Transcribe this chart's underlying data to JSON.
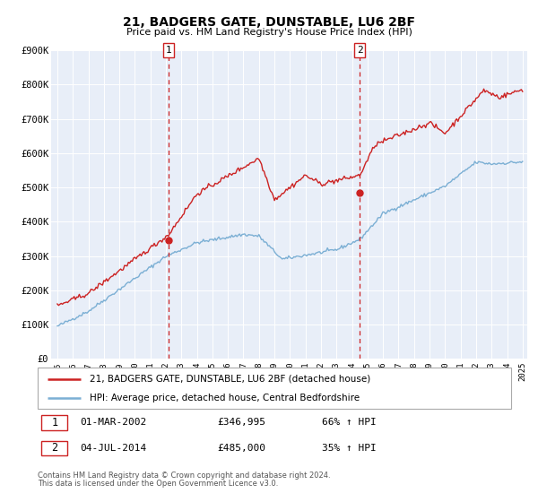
{
  "title": "21, BADGERS GATE, DUNSTABLE, LU6 2BF",
  "subtitle": "Price paid vs. HM Land Registry's House Price Index (HPI)",
  "hpi_label": "HPI: Average price, detached house, Central Bedfordshire",
  "price_label": "21, BADGERS GATE, DUNSTABLE, LU6 2BF (detached house)",
  "legend_text_1": "01-MAR-2002",
  "legend_price_1": "£346,995",
  "legend_pct_1": "66% ↑ HPI",
  "legend_text_2": "04-JUL-2014",
  "legend_price_2": "£485,000",
  "legend_pct_2": "35% ↑ HPI",
  "footer_1": "Contains HM Land Registry data © Crown copyright and database right 2024.",
  "footer_2": "This data is licensed under the Open Government Licence v3.0.",
  "vline1_year": 2002.17,
  "vline2_year": 2014.5,
  "sale1_year": 2002.17,
  "sale1_price": 346995,
  "sale2_year": 2014.5,
  "sale2_price": 485000,
  "hpi_color": "#7bafd4",
  "price_color": "#cc2222",
  "dot_color": "#cc2222",
  "background_color": "#e8eef8",
  "grid_color": "#ffffff",
  "ylim": [
    0,
    900000
  ],
  "xlim_start": 1994.6,
  "xlim_end": 2025.3,
  "yticks": [
    0,
    100000,
    200000,
    300000,
    400000,
    500000,
    600000,
    700000,
    800000,
    900000
  ],
  "ytick_labels": [
    "£0",
    "£100K",
    "£200K",
    "£300K",
    "£400K",
    "£500K",
    "£600K",
    "£700K",
    "£800K",
    "£900K"
  ],
  "xticks": [
    1995,
    1996,
    1997,
    1998,
    1999,
    2000,
    2001,
    2002,
    2003,
    2004,
    2005,
    2006,
    2007,
    2008,
    2009,
    2010,
    2011,
    2012,
    2013,
    2014,
    2015,
    2016,
    2017,
    2018,
    2019,
    2020,
    2021,
    2022,
    2023,
    2024,
    2025
  ]
}
